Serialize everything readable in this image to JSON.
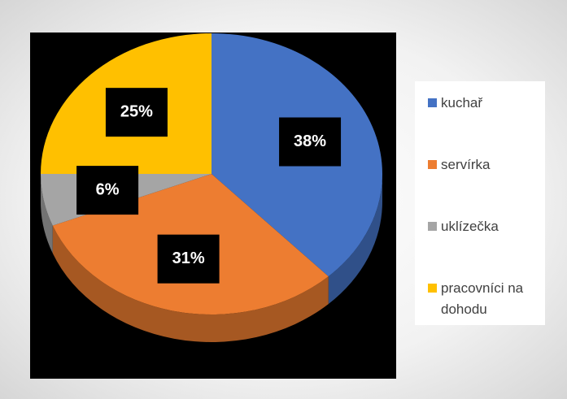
{
  "chart_data": {
    "type": "pie",
    "categories": [
      "kuchař",
      "servírka",
      "uklízečka",
      "pracovníci na dohodu"
    ],
    "values": [
      38,
      31,
      6,
      25
    ],
    "value_labels": [
      "38%",
      "31%",
      "6%",
      "25%"
    ],
    "colors": [
      "#4472c4",
      "#ed7d31",
      "#a5a5a5",
      "#ffc000"
    ],
    "legend": "right"
  }
}
